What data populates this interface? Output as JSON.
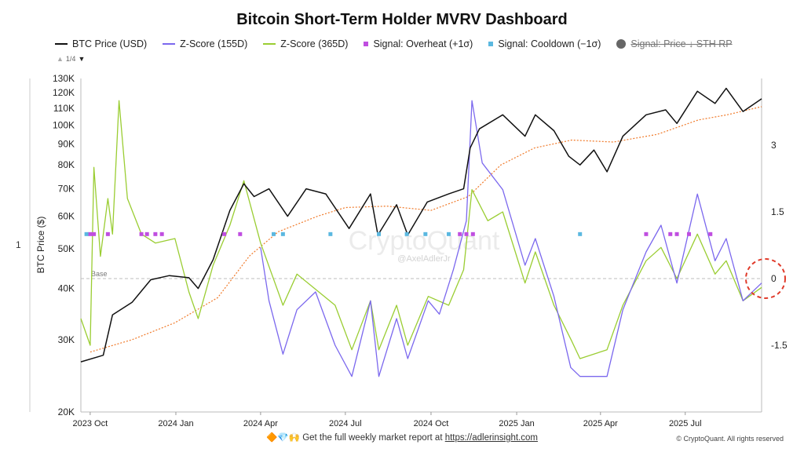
{
  "title": "Bitcoin Short-Term Holder MVRV Dashboard",
  "legend": {
    "btc_price": "BTC Price (USD)",
    "z155": "Z-Score (155D)",
    "z365": "Z-Score (365D)",
    "overheat": "Signal: Overheat (+1σ)",
    "cooldown": "Signal: Cooldown (−1σ)",
    "sth_rp": "Signal: Price ↓ STH RP"
  },
  "pager": {
    "up": "▲",
    "text": "1/4",
    "down": "▼"
  },
  "left_number": "1",
  "watermark": {
    "brand": "CryptoQuant",
    "handle": "@AxelAdlerJr"
  },
  "base_label": "Base",
  "footer": {
    "emoji": "🔶💎🙌",
    "text": "Get the full weekly market report at ",
    "link": "https://adlerinsight.com"
  },
  "copyright": "© CryptoQuant. All rights reserved",
  "colors": {
    "price": "#111111",
    "z155": "#7b68ee",
    "z365": "#9acd32",
    "z365_dark": "#6b8e23",
    "sth_rp": "#f07a2a",
    "overheat": "#c04ee0",
    "cooldown": "#5bb8e0",
    "circle": "#e03a2a"
  },
  "chart_data": {
    "type": "line",
    "x_tick_labels": [
      "2023 Oct",
      "2024 Jan",
      "2024 Apr",
      "2024 Jul",
      "2024 Oct",
      "2025 Jan",
      "2025 Apr",
      "2025 Jul"
    ],
    "x_ticks": [
      "2023-10-01",
      "2024-01-01",
      "2024-04-01",
      "2024-07-01",
      "2024-10-01",
      "2025-01-01",
      "2025-04-01",
      "2025-07-01"
    ],
    "x_range": [
      "2023-09-21",
      "2025-09-21"
    ],
    "y_left": {
      "label": "BTC Price ($)",
      "scale": "log",
      "min": 20000,
      "max": 130000,
      "ticks": [
        20000,
        30000,
        40000,
        50000,
        60000,
        70000,
        80000,
        90000,
        100000,
        110000,
        120000,
        130000
      ],
      "tick_labels": [
        "20K",
        "30K",
        "40K",
        "50K",
        "60K",
        "70K",
        "80K",
        "90K",
        "100K",
        "110K",
        "120K",
        "130K"
      ]
    },
    "y_right": {
      "min": -3.0,
      "max": 4.5,
      "ticks": [
        3,
        1.5,
        0,
        -1.5
      ],
      "tick_labels": [
        "3",
        "1.5",
        "0",
        "-1.5"
      ]
    },
    "series": [
      {
        "name": "BTC Price (USD)",
        "axis": "left",
        "points": [
          [
            "2023-09-21",
            26500
          ],
          [
            "2023-10-15",
            27500
          ],
          [
            "2023-10-25",
            34500
          ],
          [
            "2023-11-15",
            37000
          ],
          [
            "2023-12-05",
            42000
          ],
          [
            "2023-12-25",
            43000
          ],
          [
            "2024-01-15",
            42500
          ],
          [
            "2024-01-25",
            40000
          ],
          [
            "2024-02-10",
            47000
          ],
          [
            "2024-02-28",
            62000
          ],
          [
            "2024-03-14",
            72000
          ],
          [
            "2024-03-25",
            67000
          ],
          [
            "2024-04-10",
            70000
          ],
          [
            "2024-04-30",
            60000
          ],
          [
            "2024-05-20",
            70000
          ],
          [
            "2024-06-10",
            68000
          ],
          [
            "2024-07-05",
            56000
          ],
          [
            "2024-07-28",
            68000
          ],
          [
            "2024-08-05",
            54000
          ],
          [
            "2024-08-25",
            64000
          ],
          [
            "2024-09-06",
            54000
          ],
          [
            "2024-09-27",
            65000
          ],
          [
            "2024-10-20",
            68000
          ],
          [
            "2024-11-05",
            70000
          ],
          [
            "2024-11-12",
            88000
          ],
          [
            "2024-11-22",
            98000
          ],
          [
            "2024-12-17",
            106000
          ],
          [
            "2025-01-10",
            94000
          ],
          [
            "2025-01-21",
            106000
          ],
          [
            "2025-02-10",
            97000
          ],
          [
            "2025-02-26",
            84000
          ],
          [
            "2025-03-10",
            80000
          ],
          [
            "2025-03-25",
            87000
          ],
          [
            "2025-04-08",
            77000
          ],
          [
            "2025-04-25",
            94000
          ],
          [
            "2025-05-20",
            106000
          ],
          [
            "2025-06-10",
            109000
          ],
          [
            "2025-06-22",
            101000
          ],
          [
            "2025-07-14",
            121000
          ],
          [
            "2025-08-02",
            113000
          ],
          [
            "2025-08-14",
            123000
          ],
          [
            "2025-09-01",
            108000
          ],
          [
            "2025-09-21",
            116000
          ]
        ]
      },
      {
        "name": "Z-Score (155D)",
        "axis": "right",
        "points": [
          [
            "2024-04-01",
            0.7
          ],
          [
            "2024-04-10",
            -0.5
          ],
          [
            "2024-04-25",
            -1.7
          ],
          [
            "2024-05-10",
            -0.7
          ],
          [
            "2024-05-30",
            -0.3
          ],
          [
            "2024-06-20",
            -1.5
          ],
          [
            "2024-07-08",
            -2.2
          ],
          [
            "2024-07-28",
            -0.5
          ],
          [
            "2024-08-06",
            -2.2
          ],
          [
            "2024-08-25",
            -0.9
          ],
          [
            "2024-09-06",
            -1.8
          ],
          [
            "2024-09-28",
            -0.5
          ],
          [
            "2024-10-10",
            -0.8
          ],
          [
            "2024-10-25",
            0.2
          ],
          [
            "2024-11-08",
            1.3
          ],
          [
            "2024-11-14",
            4.0
          ],
          [
            "2024-11-25",
            2.6
          ],
          [
            "2024-12-17",
            2.0
          ],
          [
            "2025-01-10",
            0.3
          ],
          [
            "2025-01-21",
            0.9
          ],
          [
            "2025-02-10",
            -0.4
          ],
          [
            "2025-02-28",
            -2.0
          ],
          [
            "2025-03-10",
            -2.2
          ],
          [
            "2025-04-08",
            -2.2
          ],
          [
            "2025-04-25",
            -0.7
          ],
          [
            "2025-05-20",
            0.6
          ],
          [
            "2025-06-05",
            1.2
          ],
          [
            "2025-06-22",
            -0.1
          ],
          [
            "2025-07-14",
            1.9
          ],
          [
            "2025-08-02",
            0.4
          ],
          [
            "2025-08-14",
            0.9
          ],
          [
            "2025-09-01",
            -0.5
          ],
          [
            "2025-09-21",
            -0.1
          ]
        ]
      },
      {
        "name": "Z-Score (365D)",
        "axis": "right",
        "points": [
          [
            "2023-09-21",
            -0.9
          ],
          [
            "2023-10-01",
            -1.5
          ],
          [
            "2023-10-05",
            2.5
          ],
          [
            "2023-10-12",
            0.5
          ],
          [
            "2023-10-20",
            1.8
          ],
          [
            "2023-10-25",
            1.0
          ],
          [
            "2023-11-01",
            4.0
          ],
          [
            "2023-11-10",
            1.8
          ],
          [
            "2023-11-25",
            1.0
          ],
          [
            "2023-12-10",
            0.8
          ],
          [
            "2023-12-31",
            0.9
          ],
          [
            "2024-01-15",
            -0.3
          ],
          [
            "2024-01-25",
            -0.9
          ],
          [
            "2024-02-10",
            0.3
          ],
          [
            "2024-02-28",
            1.2
          ],
          [
            "2024-03-14",
            2.2
          ],
          [
            "2024-04-01",
            0.8
          ],
          [
            "2024-04-25",
            -0.6
          ],
          [
            "2024-05-10",
            0.1
          ],
          [
            "2024-06-20",
            -0.6
          ],
          [
            "2024-07-08",
            -1.6
          ],
          [
            "2024-07-28",
            -0.5
          ],
          [
            "2024-08-06",
            -1.6
          ],
          [
            "2024-08-25",
            -0.6
          ],
          [
            "2024-09-06",
            -1.5
          ],
          [
            "2024-09-28",
            -0.4
          ],
          [
            "2024-10-20",
            -0.6
          ],
          [
            "2024-11-05",
            0.2
          ],
          [
            "2024-11-14",
            2.0
          ],
          [
            "2024-12-01",
            1.3
          ],
          [
            "2024-12-17",
            1.5
          ],
          [
            "2025-01-10",
            -0.1
          ],
          [
            "2025-01-21",
            0.6
          ],
          [
            "2025-02-10",
            -0.6
          ],
          [
            "2025-03-01",
            -1.4
          ],
          [
            "2025-03-10",
            -1.8
          ],
          [
            "2025-04-08",
            -1.6
          ],
          [
            "2025-04-25",
            -0.6
          ],
          [
            "2025-05-20",
            0.4
          ],
          [
            "2025-06-05",
            0.7
          ],
          [
            "2025-06-22",
            0.0
          ],
          [
            "2025-07-14",
            1.0
          ],
          [
            "2025-08-02",
            0.1
          ],
          [
            "2025-08-14",
            0.4
          ],
          [
            "2025-09-01",
            -0.5
          ],
          [
            "2025-09-21",
            -0.2
          ]
        ]
      },
      {
        "name": "STH Realized Price",
        "axis": "left",
        "points": [
          [
            "2023-10-01",
            28000
          ],
          [
            "2023-11-15",
            30000
          ],
          [
            "2023-12-31",
            33000
          ],
          [
            "2024-02-15",
            38000
          ],
          [
            "2024-03-20",
            48000
          ],
          [
            "2024-04-20",
            55000
          ],
          [
            "2024-06-01",
            60000
          ],
          [
            "2024-07-01",
            63000
          ],
          [
            "2024-08-15",
            63500
          ],
          [
            "2024-10-01",
            62000
          ],
          [
            "2024-11-10",
            67000
          ],
          [
            "2024-12-15",
            80000
          ],
          [
            "2025-01-20",
            88000
          ],
          [
            "2025-03-01",
            92000
          ],
          [
            "2025-04-15",
            91000
          ],
          [
            "2025-06-01",
            95000
          ],
          [
            "2025-07-15",
            103000
          ],
          [
            "2025-08-15",
            106000
          ],
          [
            "2025-09-21",
            111000
          ]
        ]
      }
    ],
    "signals_overheat": [
      "2023-10-01",
      "2023-10-05",
      "2023-10-20",
      "2023-11-25",
      "2023-12-01",
      "2023-12-10",
      "2023-12-17",
      "2024-02-22",
      "2024-03-10",
      "2024-11-01",
      "2024-11-08",
      "2024-11-15",
      "2025-05-20",
      "2025-06-15",
      "2025-06-22",
      "2025-07-05",
      "2025-07-28"
    ],
    "signals_cooldown": [
      "2023-09-27",
      "2024-04-15",
      "2024-04-25",
      "2024-06-15",
      "2024-08-06",
      "2024-09-05",
      "2024-09-25",
      "2024-10-20",
      "2025-03-10"
    ],
    "signal_level": 1.0,
    "base_level": 0,
    "annotation": "dashed circle around the latest Z-Score near 0"
  }
}
